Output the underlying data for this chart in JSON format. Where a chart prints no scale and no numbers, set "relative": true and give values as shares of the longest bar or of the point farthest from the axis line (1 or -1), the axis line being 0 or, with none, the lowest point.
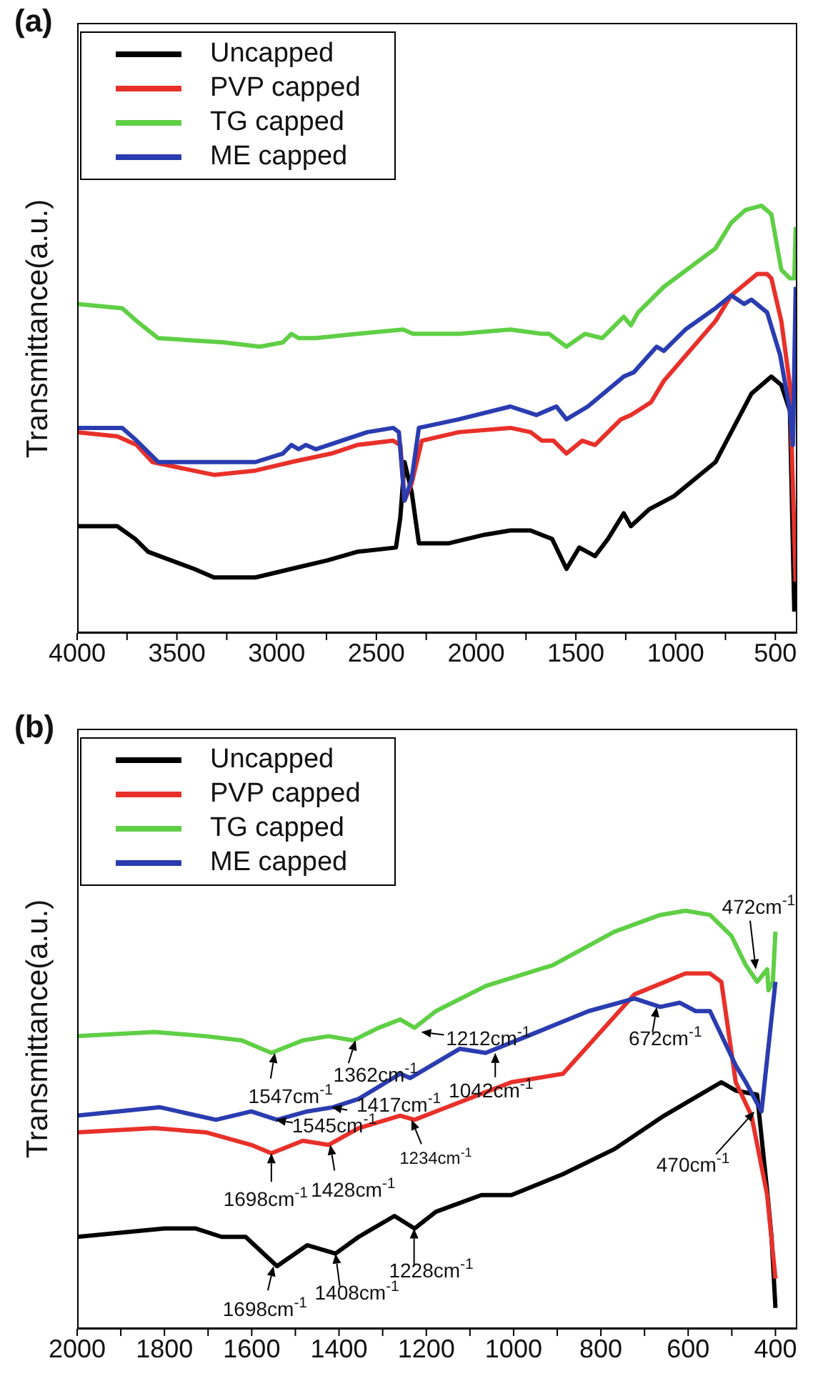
{
  "chart_data": [
    {
      "type": "line",
      "title": "(a)",
      "ylabel": "Transmittance(a.u.)",
      "relative": true,
      "legend": "top left",
      "marker": "none",
      "xlim": [
        4000,
        390
      ],
      "xticks": [
        4000,
        {
          "value": 3750,
          "label": null
        },
        3500,
        {
          "value": 3250,
          "label": null
        },
        3000,
        {
          "value": 2750,
          "label": null
        },
        2500,
        {
          "value": 2250,
          "label": null
        },
        2000,
        {
          "value": 1750,
          "label": null
        },
        1500,
        {
          "value": 1250,
          "label": null
        },
        1000,
        {
          "value": 750,
          "label": null
        },
        500
      ],
      "series": [
        {
          "name": "Uncapped",
          "color": "#000000",
          "x": [
            4000,
            3799,
            3709,
            3644,
            3414,
            3314,
            3106,
            2926,
            2746,
            2596,
            2402,
            2380,
            2359,
            2323,
            2287,
            2136,
            1957,
            1828,
            1727,
            1619,
            1547,
            1483,
            1404,
            1339,
            1260,
            1224,
            1131,
            1009,
            800,
            620,
            520,
            470,
            427,
            405
          ],
          "values": [
            0.25,
            0.25,
            0.22,
            0.19,
            0.15,
            0.13,
            0.13,
            0.15,
            0.17,
            0.19,
            0.2,
            0.27,
            0.4,
            0.33,
            0.21,
            0.21,
            0.23,
            0.24,
            0.24,
            0.22,
            0.15,
            0.2,
            0.18,
            0.22,
            0.28,
            0.25,
            0.29,
            0.32,
            0.4,
            0.56,
            0.6,
            0.58,
            0.52,
            0.05
          ]
        },
        {
          "name": "PVP capped",
          "color": "#e8302a",
          "x": [
            4000,
            3799,
            3702,
            3623,
            3314,
            3106,
            2926,
            2725,
            2596,
            2416,
            2380,
            2359,
            2323,
            2272,
            2086,
            1828,
            1727,
            1670,
            1612,
            1547,
            1468,
            1404,
            1339,
            1274,
            1224,
            1123,
            1059,
            800,
            721,
            591,
            541,
            520,
            470,
            427,
            398
          ],
          "values": [
            0.47,
            0.46,
            0.44,
            0.4,
            0.37,
            0.38,
            0.4,
            0.42,
            0.44,
            0.45,
            0.44,
            0.31,
            0.35,
            0.45,
            0.47,
            0.48,
            0.47,
            0.45,
            0.45,
            0.42,
            0.45,
            0.44,
            0.47,
            0.5,
            0.51,
            0.54,
            0.59,
            0.73,
            0.79,
            0.84,
            0.84,
            0.83,
            0.73,
            0.58,
            0.12
          ]
        },
        {
          "name": "TG capped",
          "color": "#5fcf45",
          "x": [
            4000,
            3774,
            3702,
            3594,
            3264,
            3084,
            2969,
            2926,
            2890,
            2854,
            2804,
            2596,
            2366,
            2316,
            2086,
            1828,
            1670,
            1634,
            1547,
            1454,
            1368,
            1260,
            1224,
            1188,
            1059,
            800,
            721,
            649,
            570,
            520,
            470,
            427,
            405,
            398
          ],
          "values": [
            0.77,
            0.76,
            0.73,
            0.69,
            0.68,
            0.67,
            0.68,
            0.7,
            0.69,
            0.69,
            0.69,
            0.7,
            0.71,
            0.7,
            0.7,
            0.71,
            0.7,
            0.7,
            0.67,
            0.7,
            0.69,
            0.74,
            0.72,
            0.75,
            0.81,
            0.9,
            0.96,
            0.99,
            1,
            0.98,
            0.85,
            0.83,
            0.83,
            0.95
          ]
        },
        {
          "name": "ME capped",
          "color": "#2a3cb0",
          "x": [
            4000,
            3774,
            3702,
            3594,
            3414,
            3106,
            2969,
            2926,
            2890,
            2854,
            2804,
            2545,
            2416,
            2387,
            2359,
            2323,
            2287,
            2086,
            1828,
            1698,
            1598,
            1547,
            1440,
            1260,
            1210,
            1095,
            1059,
            951,
            800,
            721,
            656,
            620,
            541,
            476,
            427,
            412,
            398
          ],
          "values": [
            0.48,
            0.48,
            0.45,
            0.4,
            0.4,
            0.4,
            0.42,
            0.44,
            0.43,
            0.44,
            0.43,
            0.47,
            0.48,
            0.47,
            0.31,
            0.36,
            0.48,
            0.5,
            0.53,
            0.51,
            0.53,
            0.5,
            0.53,
            0.6,
            0.61,
            0.67,
            0.66,
            0.71,
            0.76,
            0.79,
            0.77,
            0.78,
            0.75,
            0.65,
            0.52,
            0.44,
            0.81
          ]
        }
      ]
    },
    {
      "type": "line",
      "title": "(b)",
      "ylabel": "Transmittance(a.u.)",
      "relative": true,
      "legend": "top left",
      "marker": "none",
      "xlim": [
        2000,
        350
      ],
      "xticks": [
        2000,
        {
          "value": 1900,
          "label": null
        },
        1800,
        {
          "value": 1700,
          "label": null
        },
        1600,
        {
          "value": 1500,
          "label": null
        },
        1400,
        {
          "value": 1300,
          "label": null
        },
        1200,
        {
          "value": 1100,
          "label": null
        },
        1000,
        {
          "value": 900,
          "label": null
        },
        800,
        {
          "value": 700,
          "label": null
        },
        600,
        {
          "value": 500,
          "label": null
        },
        400
      ],
      "series": [
        {
          "name": "Uncapped",
          "color": "#000000",
          "x": [
            2000,
            1800,
            1728,
            1669,
            1614,
            1542,
            1473,
            1408,
            1355,
            1273,
            1227,
            1178,
            1074,
            1005,
            887,
            769,
            655,
            524,
            491,
            442,
            419,
            409,
            400
          ],
          "values": [
            0.22,
            0.24,
            0.24,
            0.22,
            0.22,
            0.15,
            0.2,
            0.18,
            0.22,
            0.27,
            0.24,
            0.28,
            0.32,
            0.32,
            0.37,
            0.43,
            0.51,
            0.59,
            0.57,
            0.56,
            0.33,
            0.22,
            0.05
          ]
        },
        {
          "name": "PVP capped",
          "color": "#e8302a",
          "x": [
            2000,
            1823,
            1705,
            1601,
            1555,
            1483,
            1424,
            1355,
            1260,
            1227,
            1178,
            1005,
            887,
            723,
            606,
            550,
            524,
            491,
            455,
            419,
            400
          ],
          "values": [
            0.47,
            0.48,
            0.47,
            0.44,
            0.42,
            0.45,
            0.44,
            0.48,
            0.51,
            0.5,
            0.52,
            0.59,
            0.61,
            0.8,
            0.85,
            0.85,
            0.83,
            0.59,
            0.51,
            0.32,
            0.12
          ]
        },
        {
          "name": "TG capped",
          "color": "#5fcf45",
          "x": [
            2000,
            1823,
            1705,
            1623,
            1555,
            1483,
            1424,
            1368,
            1309,
            1260,
            1227,
            1178,
            1064,
            910,
            769,
            664,
            606,
            550,
            501,
            468,
            442,
            419,
            416,
            406,
            400
          ],
          "values": [
            0.7,
            0.71,
            0.7,
            0.69,
            0.66,
            0.69,
            0.7,
            0.69,
            0.72,
            0.74,
            0.72,
            0.76,
            0.82,
            0.87,
            0.95,
            0.99,
            1,
            0.99,
            0.94,
            0.87,
            0.83,
            0.86,
            0.81,
            0.83,
            0.95
          ]
        },
        {
          "name": "ME capped",
          "color": "#2a3cb0",
          "x": [
            2000,
            1810,
            1682,
            1601,
            1542,
            1473,
            1414,
            1355,
            1260,
            1237,
            1123,
            1064,
            969,
            828,
            723,
            664,
            619,
            583,
            550,
            491,
            468,
            432,
            400
          ],
          "values": [
            0.51,
            0.53,
            0.5,
            0.52,
            0.5,
            0.52,
            0.53,
            0.55,
            0.61,
            0.6,
            0.67,
            0.66,
            0.7,
            0.76,
            0.79,
            0.77,
            0.78,
            0.76,
            0.76,
            0.63,
            0.59,
            0.52,
            0.83
          ]
        }
      ],
      "annotations": [
        {
          "text": "1547cm$^{-1}$",
          "x": 1547,
          "y": 0.66
        },
        {
          "text": "1362cm$^{-1}$",
          "x": 1362,
          "y": 0.69
        },
        {
          "text": "1212cm$^{-1}$",
          "x": 1212,
          "y": 0.71
        },
        {
          "text": "1042cm$^{-1}$",
          "x": 1042,
          "y": 0.66
        },
        {
          "text": "672cm$^{-1}$",
          "x": 672,
          "y": 0.77
        },
        {
          "text": "472cm$^{-1}$",
          "x": 445,
          "y": 0.86
        },
        {
          "text": "1417cm$^{-1}$",
          "x": 1417,
          "y": 0.53
        },
        {
          "text": "1545cm$^{-1}$",
          "x": 1545,
          "y": 0.5
        },
        {
          "text": "1234cm$^{-1}$",
          "x": 1234,
          "y": 0.5
        },
        {
          "text": "1698cm$^{-1}$",
          "x": 1555,
          "y": 0.42
        },
        {
          "text": "1428cm$^{-1}$",
          "x": 1420,
          "y": 0.44
        },
        {
          "text": "470cm$^{-1}$",
          "x": 448,
          "y": 0.52
        },
        {
          "text": "1698cm$^{-1}$",
          "x": 1550,
          "y": 0.15
        },
        {
          "text": "1408cm$^{-1}$",
          "x": 1408,
          "y": 0.18
        },
        {
          "text": "1228cm$^{-1}$",
          "x": 1228,
          "y": 0.24
        }
      ]
    }
  ]
}
